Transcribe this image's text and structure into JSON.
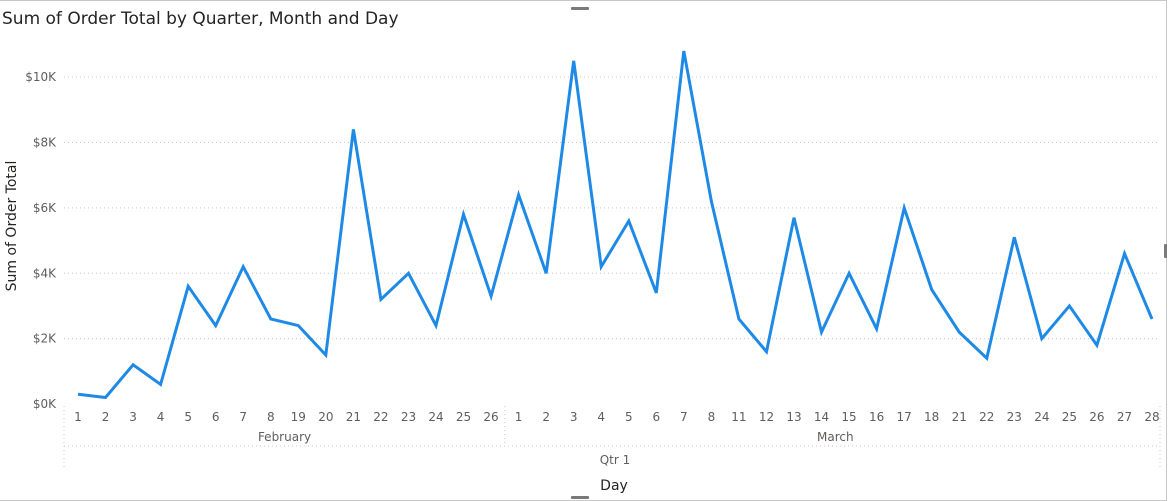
{
  "colors": {
    "line": "#1f8ae6",
    "grid": "#c8c8c8",
    "text": "#605e5c",
    "title": "#252423"
  },
  "toolbar": {
    "icons": [
      "pin-icon",
      "filter-icon",
      "drill-down-icon",
      "expand-all-icon",
      "focus-mode-icon",
      "more-options-icon"
    ]
  },
  "chart_data": {
    "type": "line",
    "title": "Sum of Order Total by Quarter, Month and Day",
    "xlabel": "Day",
    "ylabel": "Sum of Order Total",
    "ylim": [
      0,
      10800
    ],
    "y_ticks": [
      {
        "value": 0,
        "label": "$0K"
      },
      {
        "value": 2000,
        "label": "$2K"
      },
      {
        "value": 4000,
        "label": "$4K"
      },
      {
        "value": 6000,
        "label": "$6K"
      },
      {
        "value": 8000,
        "label": "$8K"
      },
      {
        "value": 10000,
        "label": "$10K"
      }
    ],
    "grid": true,
    "legend": "none",
    "quarter_label": "Qtr 1",
    "months": [
      {
        "name": "February",
        "days": [
          "1",
          "2",
          "3",
          "4",
          "5",
          "6",
          "7",
          "8",
          "19",
          "20",
          "21",
          "22",
          "23",
          "24",
          "25",
          "26"
        ]
      },
      {
        "name": "March",
        "days": [
          "1",
          "2",
          "3",
          "4",
          "5",
          "6",
          "7",
          "8",
          "11",
          "12",
          "13",
          "14",
          "15",
          "16",
          "17",
          "18",
          "21",
          "22",
          "23",
          "24",
          "25",
          "26",
          "27",
          "28"
        ]
      }
    ],
    "categories": [
      "1",
      "2",
      "3",
      "4",
      "5",
      "6",
      "7",
      "8",
      "19",
      "20",
      "21",
      "22",
      "23",
      "24",
      "25",
      "26",
      "1",
      "2",
      "3",
      "4",
      "5",
      "6",
      "7",
      "8",
      "11",
      "12",
      "13",
      "14",
      "15",
      "16",
      "17",
      "18",
      "21",
      "22",
      "23",
      "24",
      "25",
      "26",
      "27",
      "28"
    ],
    "series": [
      {
        "values": [
          300,
          200,
          1200,
          600,
          3600,
          2400,
          4200,
          2600,
          2400,
          1500,
          8400,
          3200,
          4000,
          2400,
          5800,
          3300,
          6400,
          4000,
          10500,
          4200,
          5600,
          3400,
          10800,
          6200,
          2600,
          1600,
          5700,
          2200,
          4000,
          2300,
          6000,
          3500,
          2200,
          1400,
          5100,
          2000,
          3000,
          1800,
          4600,
          2600
        ]
      }
    ]
  }
}
